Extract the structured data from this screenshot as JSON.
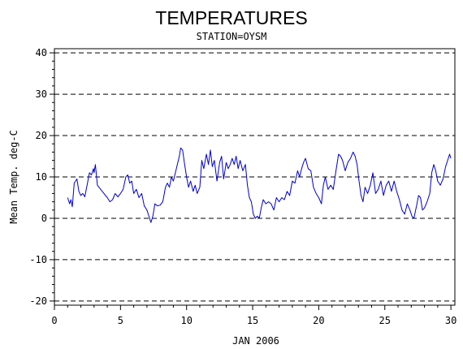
{
  "chart_data": {
    "type": "line",
    "title": "TEMPERATURES",
    "subtitle": "STATION=OYSM",
    "xlabel": "JAN 2006",
    "ylabel": "Mean Temp. deg-C",
    "xlim": [
      0,
      30.3
    ],
    "ylim": [
      -21,
      41
    ],
    "x_ticks": [
      0,
      5,
      10,
      15,
      20,
      25,
      30
    ],
    "y_ticks": [
      -20,
      -10,
      0,
      10,
      20,
      30,
      40
    ],
    "x_tick_labels": [
      "0",
      "5",
      "10",
      "15",
      "20",
      "25",
      "30"
    ],
    "y_tick_labels": [
      "-20",
      "-10",
      "0",
      "10",
      "20",
      "30",
      "40"
    ],
    "grid": "horizontal dashed at y ticks",
    "line_color": "#0000cc",
    "series": [
      {
        "x": [
          1.0,
          1.15,
          1.25,
          1.35,
          1.5,
          1.7,
          1.85,
          2.0,
          2.15,
          2.3,
          2.5,
          2.65,
          2.8,
          2.95,
          3.0,
          3.1,
          3.25,
          3.5,
          3.75,
          4.0,
          4.2,
          4.4,
          4.6,
          4.8,
          5.0,
          5.2,
          5.4,
          5.55,
          5.7,
          5.85,
          6.0,
          6.2,
          6.4,
          6.6,
          6.8,
          7.0,
          7.15,
          7.3,
          7.45,
          7.6,
          7.8,
          8.0,
          8.2,
          8.4,
          8.55,
          8.7,
          8.85,
          9.0,
          9.15,
          9.3,
          9.45,
          9.55,
          9.7,
          9.85,
          10.0,
          10.15,
          10.3,
          10.5,
          10.65,
          10.8,
          11.0,
          11.15,
          11.3,
          11.5,
          11.65,
          11.8,
          11.95,
          12.1,
          12.3,
          12.5,
          12.65,
          12.8,
          13.0,
          13.15,
          13.3,
          13.45,
          13.6,
          13.75,
          13.9,
          14.05,
          14.25,
          14.45,
          14.6,
          14.75,
          14.9,
          15.05,
          15.2,
          15.35,
          15.5,
          15.65,
          15.8,
          16.0,
          16.2,
          16.4,
          16.6,
          16.8,
          17.0,
          17.2,
          17.4,
          17.6,
          17.8,
          18.0,
          18.2,
          18.4,
          18.55,
          18.7,
          18.85,
          19.0,
          19.2,
          19.4,
          19.6,
          19.8,
          20.0,
          20.2,
          20.35,
          20.5,
          20.7,
          20.9,
          21.1,
          21.3,
          21.5,
          21.65,
          21.8,
          22.0,
          22.2,
          22.4,
          22.6,
          22.75,
          22.9,
          23.05,
          23.2,
          23.35,
          23.5,
          23.7,
          23.9,
          24.1,
          24.3,
          24.5,
          24.7,
          24.9,
          25.1,
          25.3,
          25.5,
          25.7,
          25.9,
          26.1,
          26.3,
          26.5,
          26.7,
          26.9,
          27.05,
          27.2,
          27.4,
          27.55,
          27.7,
          27.85,
          28.0,
          28.2,
          28.4,
          28.55,
          28.7,
          28.85,
          29.0,
          29.2,
          29.4,
          29.6,
          29.75,
          29.9,
          30.0
        ],
        "y": [
          5.0,
          3.5,
          4.5,
          2.8,
          8.5,
          9.5,
          6.5,
          5.5,
          6.0,
          5.2,
          8.5,
          11.0,
          10.5,
          12.0,
          11.0,
          13.0,
          8.0,
          7.0,
          6.0,
          5.0,
          4.0,
          4.5,
          6.0,
          5.2,
          6.0,
          7.0,
          10.0,
          10.5,
          8.5,
          9.0,
          6.0,
          7.0,
          5.0,
          6.0,
          3.0,
          2.0,
          0.5,
          -1.0,
          0.5,
          3.5,
          3.0,
          3.2,
          4.0,
          7.5,
          8.5,
          7.5,
          10.0,
          9.0,
          11.0,
          13.0,
          15.0,
          17.0,
          16.5,
          13.0,
          10.0,
          7.5,
          9.0,
          6.5,
          8.0,
          6.0,
          7.5,
          14.0,
          12.0,
          15.5,
          13.0,
          16.5,
          12.5,
          14.0,
          9.0,
          13.5,
          15.0,
          9.5,
          13.5,
          12.0,
          13.0,
          14.5,
          13.0,
          15.0,
          12.0,
          14.0,
          11.5,
          13.0,
          8.0,
          5.0,
          4.0,
          1.0,
          0.0,
          0.5,
          0.0,
          2.5,
          4.5,
          3.5,
          4.0,
          3.5,
          2.0,
          5.0,
          4.0,
          5.0,
          4.5,
          6.5,
          5.5,
          9.0,
          8.5,
          11.5,
          10.0,
          12.0,
          13.5,
          14.5,
          12.0,
          11.5,
          7.5,
          6.0,
          5.0,
          3.5,
          8.0,
          10.0,
          7.0,
          8.0,
          7.0,
          11.5,
          15.5,
          15.0,
          14.0,
          11.5,
          13.5,
          14.5,
          16.0,
          15.0,
          13.0,
          9.0,
          5.5,
          4.0,
          7.5,
          6.0,
          8.0,
          11.0,
          6.0,
          7.0,
          9.0,
          5.5,
          8.0,
          9.0,
          6.5,
          9.0,
          6.5,
          4.5,
          2.0,
          1.0,
          3.5,
          2.0,
          0.5,
          0.0,
          3.0,
          5.5,
          5.0,
          2.0,
          2.5,
          4.0,
          6.0,
          11.0,
          13.0,
          11.5,
          9.0,
          8.0,
          9.5,
          12.5,
          14.0,
          15.5,
          14.5
        ]
      }
    ]
  }
}
